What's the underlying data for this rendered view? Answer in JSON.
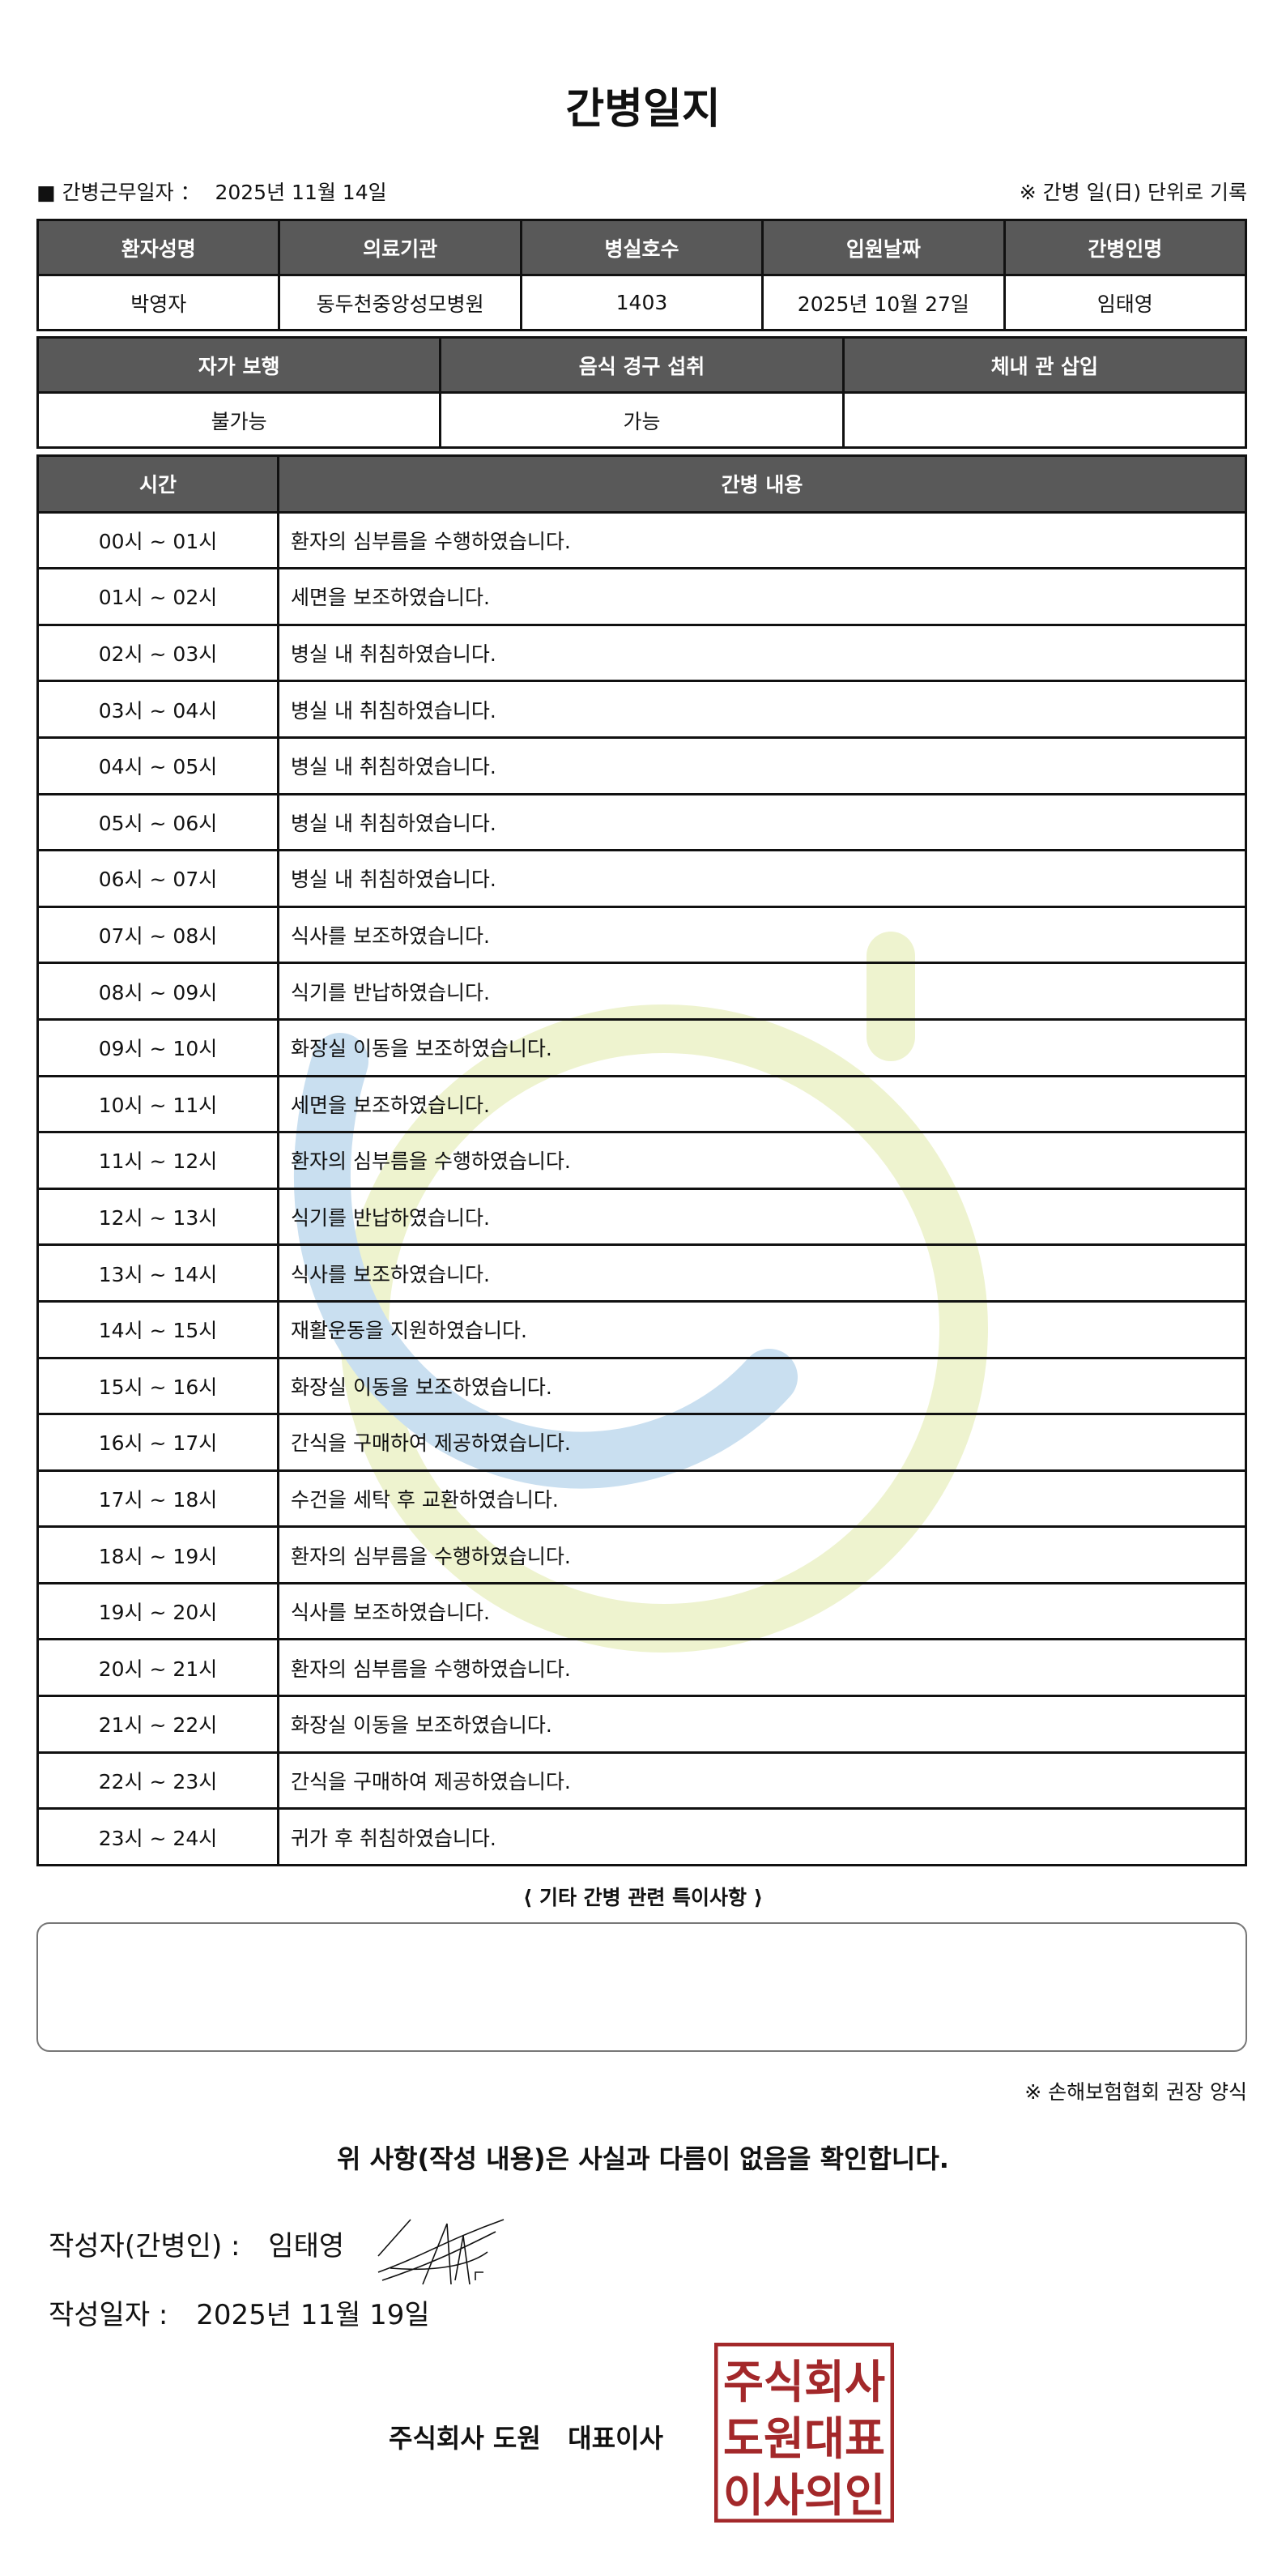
{
  "title": "간병일지",
  "work_date_label": "■ 간병근무일자 ：",
  "work_date": "2025년 11월 14일",
  "record_note": "※ 간병 일(日) 단위로 기록",
  "patient_table": {
    "headers": [
      "환자성명",
      "의료기관",
      "병실호수",
      "입원날짜",
      "간병인명"
    ],
    "values": [
      "박영자",
      "동두천중앙성모병원",
      "1403",
      "2025년 10월 27일",
      "임태영"
    ]
  },
  "status_table": {
    "headers": [
      "자가 보행",
      "음식 경구 섭취",
      "체내 관 삽입"
    ],
    "values": [
      "불가능",
      "가능",
      ""
    ]
  },
  "log_table": {
    "headers": [
      "시간",
      "간병 내용"
    ],
    "rows": [
      [
        "00시 ~ 01시",
        "환자의 심부름을 수행하였습니다."
      ],
      [
        "01시 ~ 02시",
        "세면을 보조하였습니다."
      ],
      [
        "02시 ~ 03시",
        "병실 내 취침하였습니다."
      ],
      [
        "03시 ~ 04시",
        "병실 내 취침하였습니다."
      ],
      [
        "04시 ~ 05시",
        "병실 내 취침하였습니다."
      ],
      [
        "05시 ~ 06시",
        "병실 내 취침하였습니다."
      ],
      [
        "06시 ~ 07시",
        "병실 내 취침하였습니다."
      ],
      [
        "07시 ~ 08시",
        "식사를 보조하였습니다."
      ],
      [
        "08시 ~ 09시",
        "식기를 반납하였습니다."
      ],
      [
        "09시 ~ 10시",
        "화장실 이동을 보조하였습니다."
      ],
      [
        "10시 ~ 11시",
        "세면을 보조하였습니다."
      ],
      [
        "11시 ~ 12시",
        "환자의 심부름을 수행하였습니다."
      ],
      [
        "12시 ~ 13시",
        "식기를 반납하였습니다."
      ],
      [
        "13시 ~ 14시",
        "식사를 보조하였습니다."
      ],
      [
        "14시 ~ 15시",
        "재활운동을 지원하였습니다."
      ],
      [
        "15시 ~ 16시",
        "화장실 이동을 보조하였습니다."
      ],
      [
        "16시 ~ 17시",
        "간식을 구매하여 제공하였습니다."
      ],
      [
        "17시 ~ 18시",
        "수건을 세탁 후 교환하였습니다."
      ],
      [
        "18시 ~ 19시",
        "환자의 심부름을 수행하였습니다."
      ],
      [
        "19시 ~ 20시",
        "식사를 보조하였습니다."
      ],
      [
        "20시 ~ 21시",
        "환자의 심부름을 수행하였습니다."
      ],
      [
        "21시 ~ 22시",
        "화장실 이동을 보조하였습니다."
      ],
      [
        "22시 ~ 23시",
        "간식을 구매하여 제공하였습니다."
      ],
      [
        "23시 ~ 24시",
        "귀가 후 취침하였습니다."
      ]
    ]
  },
  "special_notes_title": "⟨ 기타 간병 관련 특이사항 ⟩",
  "special_notes": "",
  "recommendation": "※ 손해보험협회 권장 양식",
  "statement": "위 사항(작성 내용)은 사실과 다름이 없음을 확인합니다.",
  "author_label": "작성자(간병인) :",
  "author_name": "임태영",
  "written_date_label": "작성일자 :",
  "written_date": "2025년 11월 19일",
  "company": "주식회사 도원   대표이사",
  "seal_text": [
    "주식회사",
    "도원대표",
    "이사의인"
  ],
  "colors": {
    "header_bg": "#595959",
    "seal": "#a3282a",
    "watermark_blue": "#c9dff0",
    "watermark_green": "#eef3cf"
  }
}
